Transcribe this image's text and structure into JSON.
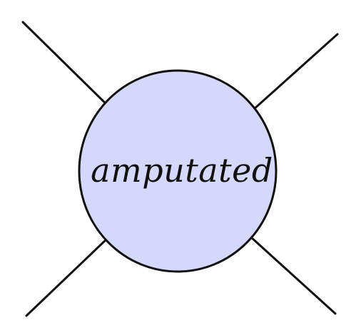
{
  "diagram": {
    "center_label": "amputated",
    "colors": {
      "blob_fill": "#d6d8fb",
      "stroke": "#111111",
      "background": "#ffffff"
    },
    "external_legs": 4
  }
}
